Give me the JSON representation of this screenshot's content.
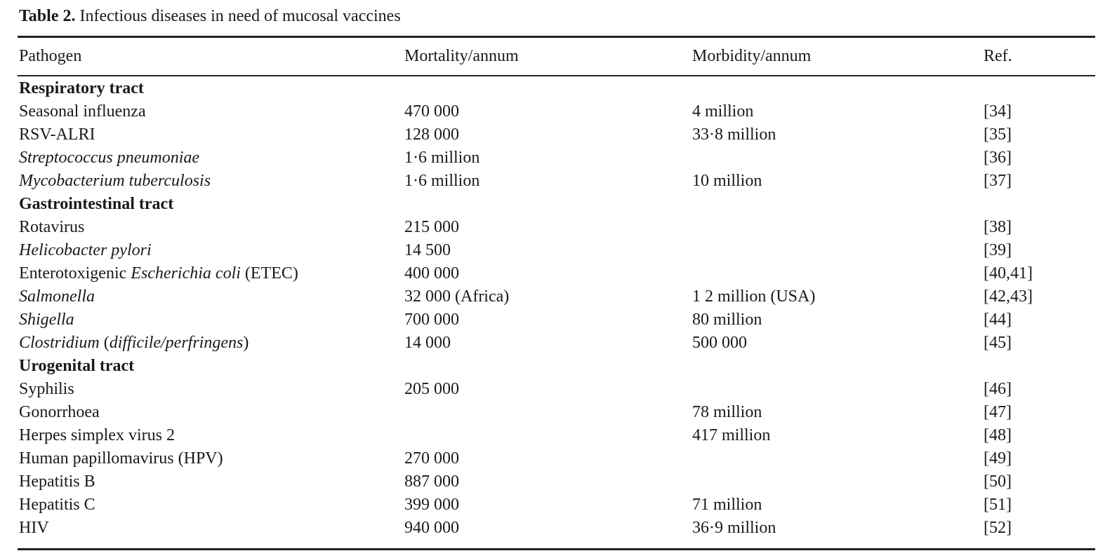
{
  "caption": {
    "label": "Table 2.",
    "text": " Infectious diseases in need of mucosal vaccines"
  },
  "columns": [
    "Pathogen",
    "Mortality/annum",
    "Morbidity/annum",
    "Ref."
  ],
  "rows": [
    {
      "type": "section",
      "pathogen": [
        {
          "t": "Respiratory tract",
          "i": false
        }
      ]
    },
    {
      "type": "data",
      "pathogen": [
        {
          "t": "Seasonal influenza",
          "i": false
        }
      ],
      "mortality": "470 000",
      "morbidity": "4 million",
      "ref": "[34]"
    },
    {
      "type": "data",
      "pathogen": [
        {
          "t": "RSV-ALRI",
          "i": false
        }
      ],
      "mortality": "128 000",
      "morbidity": "33·8 million",
      "ref": "[35]"
    },
    {
      "type": "data",
      "pathogen": [
        {
          "t": "Streptococcus pneumoniae",
          "i": true
        }
      ],
      "mortality": "1·6 million",
      "morbidity": "",
      "ref": "[36]"
    },
    {
      "type": "data",
      "pathogen": [
        {
          "t": "Mycobacterium tuberculosis",
          "i": true
        }
      ],
      "mortality": "1·6 million",
      "morbidity": "10 million",
      "ref": "[37]"
    },
    {
      "type": "section",
      "pathogen": [
        {
          "t": "Gastrointestinal tract",
          "i": false
        }
      ]
    },
    {
      "type": "data",
      "pathogen": [
        {
          "t": "Rotavirus",
          "i": false
        }
      ],
      "mortality": "215 000",
      "morbidity": "",
      "ref": "[38]"
    },
    {
      "type": "data",
      "pathogen": [
        {
          "t": "Helicobacter pylori",
          "i": true
        }
      ],
      "mortality": "14 500",
      "morbidity": "",
      "ref": "[39]"
    },
    {
      "type": "data",
      "pathogen": [
        {
          "t": "Enterotoxigenic ",
          "i": false
        },
        {
          "t": "Escherichia coli",
          "i": true
        },
        {
          "t": " (ETEC)",
          "i": false
        }
      ],
      "mortality": "400 000",
      "morbidity": "",
      "ref": "[40,41]"
    },
    {
      "type": "data",
      "pathogen": [
        {
          "t": "Salmonella",
          "i": true
        }
      ],
      "mortality": "32 000 (Africa)",
      "morbidity": "1 2 million (USA)",
      "ref": "[42,43]"
    },
    {
      "type": "data",
      "pathogen": [
        {
          "t": "Shigella",
          "i": true
        }
      ],
      "mortality": "700 000",
      "morbidity": "80 million",
      "ref": "[44]"
    },
    {
      "type": "data",
      "pathogen": [
        {
          "t": "Clostridium",
          "i": true
        },
        {
          "t": " (",
          "i": false
        },
        {
          "t": "difficile/perfringens",
          "i": true
        },
        {
          "t": ")",
          "i": false
        }
      ],
      "mortality": "14 000",
      "morbidity": "500 000",
      "ref": "[45]"
    },
    {
      "type": "section",
      "pathogen": [
        {
          "t": "Urogenital tract",
          "i": false
        }
      ]
    },
    {
      "type": "data",
      "pathogen": [
        {
          "t": "Syphilis",
          "i": false
        }
      ],
      "mortality": "205 000",
      "morbidity": "",
      "ref": "[46]"
    },
    {
      "type": "data",
      "pathogen": [
        {
          "t": "Gonorrhoea",
          "i": false
        }
      ],
      "mortality": "",
      "morbidity": "78 million",
      "ref": "[47]"
    },
    {
      "type": "data",
      "pathogen": [
        {
          "t": "Herpes simplex virus 2",
          "i": false
        }
      ],
      "mortality": "",
      "morbidity": "417 million",
      "ref": "[48]"
    },
    {
      "type": "data",
      "pathogen": [
        {
          "t": "Human papillomavirus (HPV)",
          "i": false
        }
      ],
      "mortality": "270 000",
      "morbidity": "",
      "ref": "[49]"
    },
    {
      "type": "data",
      "pathogen": [
        {
          "t": "Hepatitis B",
          "i": false
        }
      ],
      "mortality": "887 000",
      "morbidity": "",
      "ref": "[50]"
    },
    {
      "type": "data",
      "pathogen": [
        {
          "t": "Hepatitis C",
          "i": false
        }
      ],
      "mortality": "399 000",
      "morbidity": "71 million",
      "ref": "[51]"
    },
    {
      "type": "data",
      "pathogen": [
        {
          "t": "HIV",
          "i": false
        }
      ],
      "mortality": "940 000",
      "morbidity": "36·9 million",
      "ref": "[52]"
    }
  ]
}
